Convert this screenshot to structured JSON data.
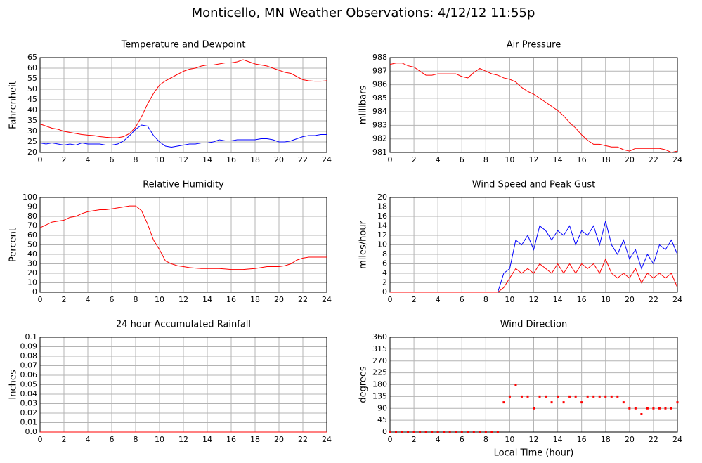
{
  "title": "Monticello, MN Weather Observations: 4/12/12 11:55p",
  "chart_data": [
    {
      "type": "line",
      "title": "Temperature and Dewpoint",
      "ylabel": "Fahrenheit",
      "x": [
        0,
        0.5,
        1,
        1.5,
        2,
        2.5,
        3,
        3.5,
        4,
        4.5,
        5,
        5.5,
        6,
        6.5,
        7,
        7.5,
        8,
        8.5,
        9,
        9.5,
        10,
        10.5,
        11,
        11.5,
        12,
        12.5,
        13,
        13.5,
        14,
        14.5,
        15,
        15.5,
        16,
        16.5,
        17,
        17.5,
        18,
        18.5,
        19,
        19.5,
        20,
        20.5,
        21,
        21.5,
        22,
        22.5,
        23,
        23.5,
        24
      ],
      "series": [
        {
          "color": "#ff0000",
          "values": [
            33.5,
            32.5,
            31.5,
            31,
            30,
            29.5,
            29,
            28.5,
            28.2,
            28,
            27.5,
            27.2,
            27,
            27,
            27.5,
            29,
            32,
            37,
            43,
            48,
            52,
            54,
            55.5,
            57,
            58.5,
            59.5,
            60,
            61,
            61.5,
            61.5,
            62,
            62.5,
            62.5,
            63,
            64,
            63,
            62,
            61.5,
            61,
            60,
            59,
            58,
            57.5,
            56,
            54.5,
            54,
            53.8,
            53.8,
            54
          ]
        },
        {
          "color": "#0000ff",
          "values": [
            24.5,
            24,
            24.5,
            24,
            23.5,
            24,
            23.5,
            24.5,
            24,
            24,
            24,
            23.5,
            23.5,
            24,
            25.5,
            28,
            31,
            33,
            32.5,
            28,
            25,
            23,
            22.5,
            23,
            23.5,
            24,
            24,
            24.5,
            24.5,
            25,
            26,
            25.5,
            25.5,
            26,
            26,
            26,
            26,
            26.5,
            26.5,
            26,
            25,
            25,
            25.5,
            26.5,
            27.5,
            28,
            28,
            28.5,
            28.5
          ]
        }
      ],
      "xlim": [
        0,
        24
      ],
      "xticks": [
        0,
        2,
        4,
        6,
        8,
        10,
        12,
        14,
        16,
        18,
        20,
        22,
        24
      ],
      "ylim": [
        20,
        65
      ],
      "yticks": [
        20,
        25,
        30,
        35,
        40,
        45,
        50,
        55,
        60,
        65
      ],
      "grid": true
    },
    {
      "type": "line",
      "title": "Air Pressure",
      "ylabel": "millibars",
      "x": [
        0,
        0.5,
        1,
        1.5,
        2,
        2.5,
        3,
        3.5,
        4,
        4.5,
        5,
        5.5,
        6,
        6.5,
        7,
        7.5,
        8,
        8.5,
        9,
        9.5,
        10,
        10.5,
        11,
        11.5,
        12,
        12.5,
        13,
        13.5,
        14,
        14.5,
        15,
        15.5,
        16,
        16.5,
        17,
        17.5,
        18,
        18.5,
        19,
        19.5,
        20,
        20.5,
        21,
        21.5,
        22,
        22.5,
        23,
        23.5,
        24
      ],
      "series": [
        {
          "color": "#ff0000",
          "values": [
            987.5,
            987.6,
            987.6,
            987.4,
            987.3,
            987.0,
            986.7,
            986.7,
            986.8,
            986.8,
            986.8,
            986.8,
            986.6,
            986.5,
            986.9,
            987.2,
            987.0,
            986.8,
            986.7,
            986.5,
            986.4,
            986.2,
            985.8,
            985.5,
            985.3,
            985.0,
            984.7,
            984.4,
            984.1,
            983.7,
            983.2,
            982.8,
            982.3,
            981.9,
            981.6,
            981.6,
            981.5,
            981.4,
            981.4,
            981.2,
            981.1,
            981.3,
            981.3,
            981.3,
            981.3,
            981.3,
            981.2,
            981.0,
            981.1
          ]
        }
      ],
      "xlim": [
        0,
        24
      ],
      "xticks": [
        0,
        2,
        4,
        6,
        8,
        10,
        12,
        14,
        16,
        18,
        20,
        22,
        24
      ],
      "ylim": [
        981,
        988
      ],
      "yticks": [
        981,
        982,
        983,
        984,
        985,
        986,
        987,
        988
      ],
      "grid": true
    },
    {
      "type": "line",
      "title": "Relative Humidity",
      "ylabel": "Percent",
      "x": [
        0,
        0.5,
        1,
        1.5,
        2,
        2.5,
        3,
        3.5,
        4,
        4.5,
        5,
        5.5,
        6,
        6.5,
        7,
        7.5,
        8,
        8.5,
        9,
        9.5,
        10,
        10.5,
        11,
        11.5,
        12,
        12.5,
        13,
        13.5,
        14,
        14.5,
        15,
        15.5,
        16,
        16.5,
        17,
        17.5,
        18,
        18.5,
        19,
        19.5,
        20,
        20.5,
        21,
        21.5,
        22,
        22.5,
        23,
        23.5,
        24
      ],
      "series": [
        {
          "color": "#ff0000",
          "values": [
            68,
            71,
            74,
            75,
            76,
            79,
            80,
            83,
            85,
            86,
            87,
            87,
            88,
            89,
            90,
            91,
            91,
            86,
            72,
            55,
            45,
            33,
            30,
            28,
            27,
            26,
            25.5,
            25,
            25,
            25,
            25,
            24.5,
            24,
            24,
            24,
            24.5,
            25,
            26,
            27,
            27,
            27,
            28,
            30,
            34,
            36,
            37,
            37,
            37,
            37
          ]
        }
      ],
      "xlim": [
        0,
        24
      ],
      "xticks": [
        0,
        2,
        4,
        6,
        8,
        10,
        12,
        14,
        16,
        18,
        20,
        22,
        24
      ],
      "ylim": [
        0,
        100
      ],
      "yticks": [
        0,
        10,
        20,
        30,
        40,
        50,
        60,
        70,
        80,
        90,
        100
      ],
      "grid": true
    },
    {
      "type": "line",
      "title": "Wind Speed and Peak Gust",
      "ylabel": "miles/hour",
      "x": [
        0,
        0.5,
        1,
        1.5,
        2,
        2.5,
        3,
        3.5,
        4,
        4.5,
        5,
        5.5,
        6,
        6.5,
        7,
        7.5,
        8,
        8.5,
        9,
        9.5,
        10,
        10.5,
        11,
        11.5,
        12,
        12.5,
        13,
        13.5,
        14,
        14.5,
        15,
        15.5,
        16,
        16.5,
        17,
        17.5,
        18,
        18.5,
        19,
        19.5,
        20,
        20.5,
        21,
        21.5,
        22,
        22.5,
        23,
        23.5,
        24
      ],
      "series": [
        {
          "color": "#0000ff",
          "values": [
            0,
            0,
            0,
            0,
            0,
            0,
            0,
            0,
            0,
            0,
            0,
            0,
            0,
            0,
            0,
            0,
            0,
            0,
            0,
            4,
            5,
            11,
            10,
            12,
            9,
            14,
            13,
            11,
            13,
            12,
            14,
            10,
            13,
            12,
            14,
            10,
            15,
            10,
            8,
            11,
            7,
            9,
            5,
            8,
            6,
            10,
            9,
            11,
            8
          ]
        },
        {
          "color": "#ff0000",
          "values": [
            0,
            0,
            0,
            0,
            0,
            0,
            0,
            0,
            0,
            0,
            0,
            0,
            0,
            0,
            0,
            0,
            0,
            0,
            0,
            1,
            3,
            5,
            4,
            5,
            4,
            6,
            5,
            4,
            6,
            4,
            6,
            4,
            6,
            5,
            6,
            4,
            7,
            4,
            3,
            4,
            3,
            5,
            2,
            4,
            3,
            4,
            3,
            4,
            1
          ]
        }
      ],
      "xlim": [
        0,
        24
      ],
      "xticks": [
        0,
        2,
        4,
        6,
        8,
        10,
        12,
        14,
        16,
        18,
        20,
        22,
        24
      ],
      "ylim": [
        0,
        20
      ],
      "yticks": [
        0,
        2,
        4,
        6,
        8,
        10,
        12,
        14,
        16,
        18,
        20
      ],
      "grid": true
    },
    {
      "type": "line",
      "title": "24 hour Accumulated Rainfall",
      "ylabel": "Inches",
      "x": [
        0,
        24
      ],
      "series": [
        {
          "color": "#ff0000",
          "values": [
            0,
            0
          ]
        }
      ],
      "xlim": [
        0,
        24
      ],
      "xticks": [
        0,
        2,
        4,
        6,
        8,
        10,
        12,
        14,
        16,
        18,
        20,
        22,
        24
      ],
      "ylim": [
        0,
        0.1
      ],
      "yticks": [
        {
          "value": 0,
          "label": "0.0"
        },
        0.01,
        0.02,
        0.03,
        0.04,
        0.05,
        0.06,
        0.07,
        0.08,
        0.09,
        0.1
      ],
      "grid": true
    },
    {
      "type": "scatter",
      "title": "Wind Direction",
      "ylabel": "degrees",
      "xlabel": "Local Time (hour)",
      "x": [
        0,
        0.5,
        1,
        1.5,
        2,
        2.5,
        3,
        3.5,
        4,
        4.5,
        5,
        5.5,
        6,
        6.5,
        7,
        7.5,
        8,
        8.5,
        9,
        9.5,
        10,
        10.5,
        11,
        11.5,
        12,
        12.5,
        13,
        13.5,
        14,
        14.5,
        15,
        15.5,
        16,
        16.5,
        17,
        17.5,
        18,
        18.5,
        19,
        19.5,
        20,
        20.5,
        21,
        21.5,
        22,
        22.5,
        23,
        23.5,
        24
      ],
      "series": [
        {
          "color": "#ff0000",
          "values": [
            0,
            0,
            0,
            0,
            0,
            0,
            0,
            0,
            0,
            0,
            0,
            0,
            0,
            0,
            0,
            0,
            0,
            0,
            0,
            113,
            135,
            180,
            135,
            135,
            90,
            135,
            135,
            113,
            135,
            113,
            135,
            135,
            113,
            135,
            135,
            135,
            135,
            135,
            135,
            113,
            90,
            90,
            68,
            90,
            90,
            90,
            90,
            90,
            113
          ]
        }
      ],
      "xlim": [
        0,
        24
      ],
      "xticks": [
        0,
        2,
        4,
        6,
        8,
        10,
        12,
        14,
        16,
        18,
        20,
        22,
        24
      ],
      "ylim": [
        0,
        360
      ],
      "yticks": [
        0,
        45,
        90,
        135,
        180,
        225,
        270,
        315,
        360
      ],
      "grid": true
    }
  ]
}
